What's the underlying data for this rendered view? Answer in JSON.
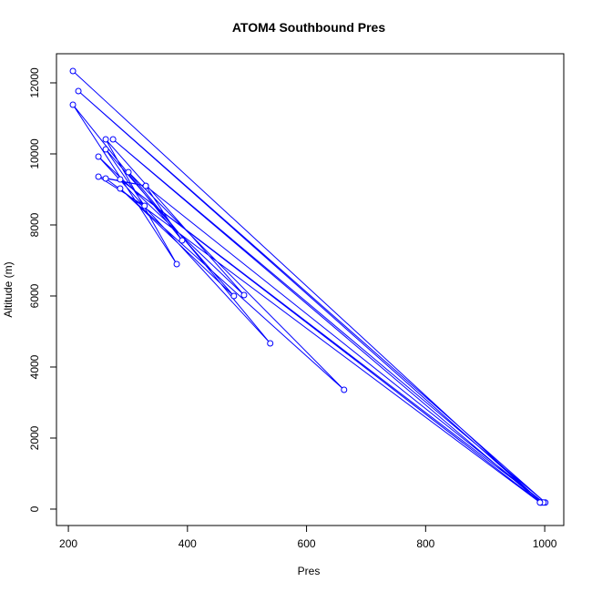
{
  "chart_data": {
    "type": "line",
    "title": "ATOM4 Southbound Pres",
    "x_label": "Pres",
    "y_label": "Altitude (m)",
    "color": "#0000ff",
    "markers": true,
    "grid": false,
    "x": [
      207.6,
      995,
      216.8,
      1001,
      275,
      993,
      287,
      998,
      330,
      391,
      207.6,
      382,
      262.7,
      495,
      250.5,
      539,
      300.9,
      663,
      287,
      478,
      262.7,
      328,
      250.5,
      330,
      262.7,
      992
    ],
    "series": [
      {
        "name": "Altitude",
        "color": "#0000ff",
        "values": [
          12333,
          185,
          11769,
          185,
          10410,
          185,
          9282,
          185,
          9100,
          7564,
          11385,
          6897,
          10410,
          6026,
          9923,
          4667,
          9487,
          3359,
          9026,
          6000,
          10128,
          8538,
          9359,
          9100,
          9308,
          185
        ]
      }
    ],
    "xlim": [
      180,
      1032
    ],
    "xticks": [
      200,
      400,
      600,
      800,
      1000
    ],
    "ylim": [
      -462,
      12820
    ],
    "yticks": [
      0,
      2000,
      4000,
      6000,
      8000,
      10000,
      12000
    ]
  }
}
